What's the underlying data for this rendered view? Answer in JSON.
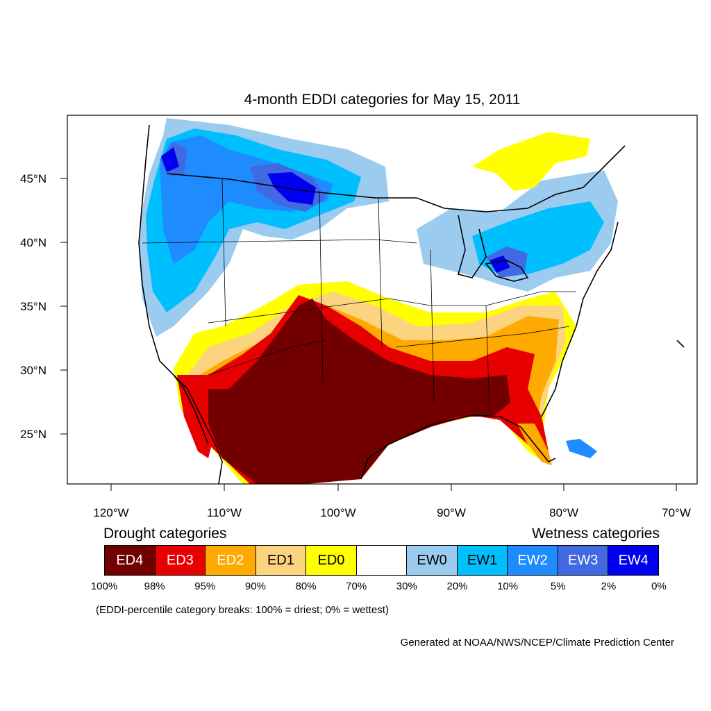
{
  "title": "4-month EDDI categories for May 15, 2011",
  "lat_ticks": [
    "45°N",
    "40°N",
    "35°N",
    "30°N",
    "25°N"
  ],
  "lon_ticks": [
    "120°W",
    "110°W",
    "100°W",
    "90°W",
    "80°W",
    "70°W"
  ],
  "legend": {
    "drought_title": "Drought categories",
    "wetness_title": "Wetness categories",
    "categories": [
      {
        "label": "ED4",
        "color": "#730000",
        "text_color": "#ffffff"
      },
      {
        "label": "ED3",
        "color": "#e60000",
        "text_color": "#ffffff"
      },
      {
        "label": "ED2",
        "color": "#ffaa00",
        "text_color": "#ffffff"
      },
      {
        "label": "ED1",
        "color": "#fcd37f",
        "text_color": "#000000"
      },
      {
        "label": "ED0",
        "color": "#ffff00",
        "text_color": "#000000"
      },
      {
        "label": "",
        "color": "#ffffff",
        "text_color": "#000000"
      },
      {
        "label": "EW0",
        "color": "#9ccbf0",
        "text_color": "#000000"
      },
      {
        "label": "EW1",
        "color": "#00bfff",
        "text_color": "#000000"
      },
      {
        "label": "EW2",
        "color": "#1e8cff",
        "text_color": "#ffffff"
      },
      {
        "label": "EW3",
        "color": "#4169e1",
        "text_color": "#ffffff"
      },
      {
        "label": "EW4",
        "color": "#0000f0",
        "text_color": "#ffffff"
      }
    ],
    "breaks": [
      "100%",
      "98%",
      "95%",
      "90%",
      "80%",
      "70%",
      "30%",
      "20%",
      "10%",
      "5%",
      "2%",
      "0%"
    ]
  },
  "note": "(EDDI-percentile category breaks: 100% = driest; 0% = wettest)",
  "credit": "Generated at NOAA/NWS/NCEP/Climate Prediction Center"
}
